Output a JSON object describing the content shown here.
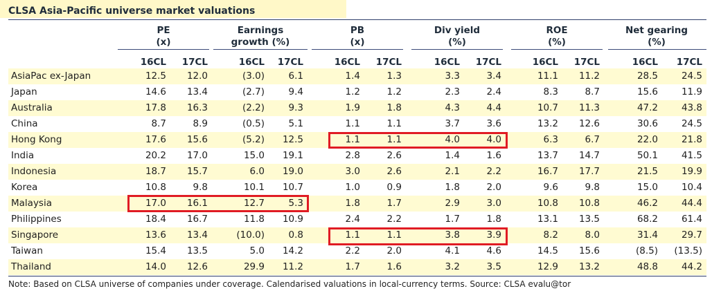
{
  "title": "CLSA Asia-Pacific universe market valuations",
  "column_groups": [
    {
      "line1": "PE",
      "line2": "(x)"
    },
    {
      "line1": "Earnings",
      "line2": "growth (%)"
    },
    {
      "line1": "PB",
      "line2": "(x)"
    },
    {
      "line1": "Div yield",
      "line2": "(%)"
    },
    {
      "line1": "ROE",
      "line2": "(%)"
    },
    {
      "line1": "Net gearing",
      "line2": "(%)"
    }
  ],
  "sub_headers": [
    "16CL",
    "17CL",
    "16CL",
    "17CL",
    "16CL",
    "17CL",
    "16CL",
    "17CL",
    "16CL",
    "17CL",
    "16CL",
    "17CL"
  ],
  "rows": [
    {
      "label": "AsiaPac ex-Japan",
      "values": [
        "12.5",
        "12.0",
        "(3.0)",
        "6.1",
        "1.4",
        "1.3",
        "3.3",
        "3.4",
        "11.1",
        "11.2",
        "28.5",
        "24.5"
      ]
    },
    {
      "label": "Japan",
      "values": [
        "14.6",
        "13.4",
        "(2.7)",
        "9.4",
        "1.2",
        "1.2",
        "2.3",
        "2.4",
        "8.3",
        "8.7",
        "15.6",
        "11.9"
      ]
    },
    {
      "label": "Australia",
      "values": [
        "17.8",
        "16.3",
        "(2.2)",
        "9.3",
        "1.9",
        "1.8",
        "4.3",
        "4.4",
        "10.7",
        "11.3",
        "47.2",
        "43.8"
      ]
    },
    {
      "label": "China",
      "values": [
        "8.7",
        "8.9",
        "(0.5)",
        "5.1",
        "1.1",
        "1.1",
        "3.7",
        "3.6",
        "13.2",
        "12.6",
        "30.6",
        "24.5"
      ]
    },
    {
      "label": "Hong Kong",
      "values": [
        "17.6",
        "15.6",
        "(5.2)",
        "12.5",
        "1.1",
        "1.1",
        "4.0",
        "4.0",
        "6.3",
        "6.7",
        "22.0",
        "21.8"
      ]
    },
    {
      "label": "India",
      "values": [
        "20.2",
        "17.0",
        "15.0",
        "19.1",
        "2.8",
        "2.6",
        "1.4",
        "1.6",
        "13.7",
        "14.7",
        "50.1",
        "41.5"
      ]
    },
    {
      "label": "Indonesia",
      "values": [
        "18.7",
        "15.7",
        "6.0",
        "19.0",
        "3.0",
        "2.6",
        "2.1",
        "2.2",
        "16.7",
        "17.7",
        "21.5",
        "19.9"
      ]
    },
    {
      "label": "Korea",
      "values": [
        "10.8",
        "9.8",
        "10.1",
        "10.7",
        "1.0",
        "0.9",
        "1.8",
        "2.0",
        "9.6",
        "9.8",
        "15.0",
        "10.4"
      ]
    },
    {
      "label": "Malaysia",
      "values": [
        "17.0",
        "16.1",
        "12.7",
        "5.3",
        "1.8",
        "1.7",
        "2.9",
        "3.0",
        "10.8",
        "10.8",
        "46.2",
        "44.4"
      ]
    },
    {
      "label": "Philippines",
      "values": [
        "18.4",
        "16.7",
        "11.8",
        "10.9",
        "2.4",
        "2.2",
        "1.7",
        "1.8",
        "13.1",
        "13.5",
        "68.2",
        "61.4"
      ]
    },
    {
      "label": "Singapore",
      "values": [
        "13.6",
        "13.4",
        "(10.0)",
        "0.8",
        "1.1",
        "1.1",
        "3.8",
        "3.9",
        "8.2",
        "8.0",
        "31.4",
        "29.7"
      ]
    },
    {
      "label": "Taiwan",
      "values": [
        "15.4",
        "13.5",
        "5.0",
        "14.2",
        "2.2",
        "2.0",
        "4.1",
        "4.6",
        "14.5",
        "15.6",
        "(8.5)",
        "(13.5)"
      ]
    },
    {
      "label": "Thailand",
      "values": [
        "14.0",
        "12.6",
        "29.9",
        "11.2",
        "1.7",
        "1.6",
        "3.2",
        "3.5",
        "12.9",
        "13.2",
        "48.8",
        "44.2"
      ]
    }
  ],
  "note": "Note: Based on CLSA universe of companies under coverage. Calendarised valuations in local-currency terms. Source: CLSA evalu@tor",
  "colors": {
    "highlight": "#e01b24",
    "odd_row": "#fffbd2",
    "title_band": "#fff8c8",
    "rule": "#2e3e6a"
  }
}
